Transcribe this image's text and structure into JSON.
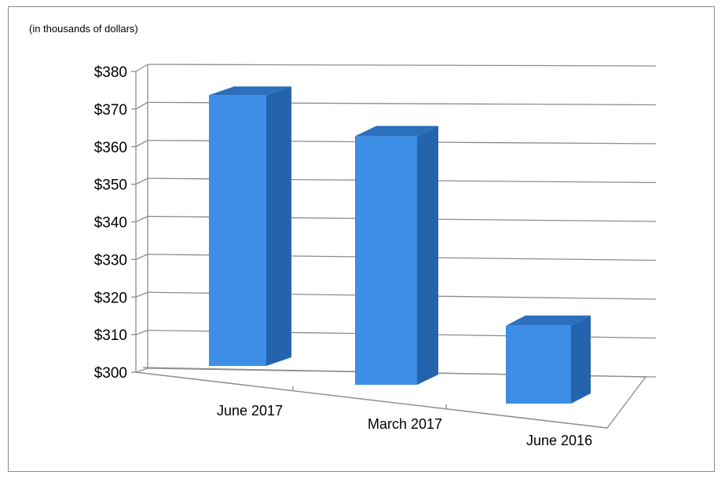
{
  "chart_data": {
    "type": "bar",
    "style": "3d-column",
    "unit_note": "(in thousands of dollars)",
    "categories": [
      "June 2017",
      "March 2017",
      "June 2016"
    ],
    "values": [
      373,
      367,
      321
    ],
    "y_ticks": [
      "$300",
      "$310",
      "$320",
      "$330",
      "$340",
      "$350",
      "$360",
      "$370",
      "$380"
    ],
    "ylim": [
      300,
      380
    ],
    "grid": true,
    "legend": "none",
    "colors": {
      "bar_front": "#3d8ee6",
      "bar_side": "#2464ad",
      "bar_top": "#2c6fbd",
      "grid": "#8c8c8c"
    }
  }
}
